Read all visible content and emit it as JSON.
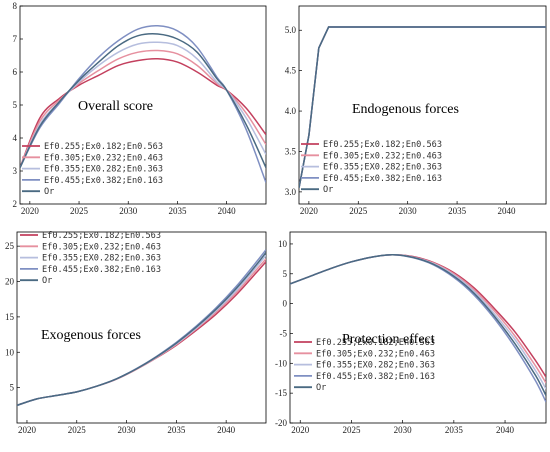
{
  "series_colors": [
    "#c3405e",
    "#e6909f",
    "#b6bede",
    "#7f8fc2",
    "#4a6a82"
  ],
  "chart_data": [
    {
      "type": "line",
      "title": "Overall score",
      "xlim": [
        2019,
        2044
      ],
      "ylim": [
        2,
        8
      ],
      "xticks": [
        "2020",
        "2025",
        "2030",
        "2035",
        "2040"
      ],
      "yticks": [
        "2",
        "3",
        "4",
        "5",
        "6",
        "7",
        "8"
      ],
      "legend": "lower-left",
      "x": [
        2019,
        2021,
        2023,
        2025,
        2027,
        2029,
        2031,
        2033,
        2035,
        2037,
        2039,
        2040,
        2042,
        2044
      ],
      "series": [
        {
          "name": "Ef0.255;Ex0.182;En0.563",
          "values": [
            3.1,
            4.6,
            5.2,
            5.6,
            5.9,
            6.2,
            6.35,
            6.4,
            6.3,
            6.0,
            5.6,
            5.45,
            4.9,
            4.1
          ]
        },
        {
          "name": "Ef0.305;Ex0.232;En0.463",
          "values": [
            3.1,
            4.5,
            5.15,
            5.65,
            6.05,
            6.4,
            6.6,
            6.65,
            6.55,
            6.2,
            5.65,
            5.45,
            4.75,
            3.8
          ]
        },
        {
          "name": "Ef0.355;EX0.282;En0.363",
          "values": [
            3.1,
            4.4,
            5.1,
            5.7,
            6.2,
            6.6,
            6.85,
            6.9,
            6.8,
            6.4,
            5.7,
            5.45,
            4.6,
            3.5
          ]
        },
        {
          "name": "Ef0.455;Ex0.382;En0.163",
          "values": [
            3.1,
            4.3,
            5.05,
            5.8,
            6.45,
            6.95,
            7.3,
            7.4,
            7.25,
            6.75,
            5.85,
            5.45,
            4.25,
            2.65
          ]
        },
        {
          "name": "Or",
          "values": [
            3.1,
            4.35,
            5.1,
            5.75,
            6.3,
            6.8,
            7.1,
            7.15,
            7.0,
            6.6,
            5.8,
            5.45,
            4.4,
            3.1
          ]
        }
      ]
    },
    {
      "type": "line",
      "title": "Endogenous forces",
      "xlim": [
        2019,
        2044
      ],
      "ylim": [
        2.85,
        5.3
      ],
      "xticks": [
        "2020",
        "2025",
        "2030",
        "2035",
        "2040"
      ],
      "yticks": [
        "3.0",
        "3.5",
        "4.0",
        "4.5",
        "5.0"
      ],
      "legend": "lower-left",
      "x": [
        2019,
        2020,
        2021,
        2022,
        2025,
        2030,
        2035,
        2040,
        2044
      ],
      "series": [
        {
          "name": "Ef0.255;Ex0.182;En0.563",
          "values": [
            3.05,
            3.7,
            4.78,
            5.04,
            5.04,
            5.04,
            5.04,
            5.04,
            5.04
          ]
        },
        {
          "name": "Ef0.305;Ex0.232;En0.463",
          "values": [
            3.05,
            3.7,
            4.78,
            5.04,
            5.04,
            5.04,
            5.04,
            5.04,
            5.04
          ]
        },
        {
          "name": "Ef0.355;EX0.282;En0.363",
          "values": [
            3.05,
            3.7,
            4.78,
            5.04,
            5.04,
            5.04,
            5.04,
            5.04,
            5.04
          ]
        },
        {
          "name": "Ef0.455;Ex0.382;En0.163",
          "values": [
            3.05,
            3.7,
            4.78,
            5.04,
            5.04,
            5.04,
            5.04,
            5.04,
            5.04
          ]
        },
        {
          "name": "Or",
          "values": [
            3.05,
            3.7,
            4.78,
            5.04,
            5.04,
            5.04,
            5.04,
            5.04,
            5.04
          ]
        }
      ]
    },
    {
      "type": "line",
      "title": "Exogenous forces",
      "xlim": [
        2019,
        2044
      ],
      "ylim": [
        0,
        27
      ],
      "xticks": [
        "2020",
        "2025",
        "2030",
        "2035",
        "2040"
      ],
      "yticks": [
        "5",
        "10",
        "15",
        "20",
        "25"
      ],
      "legend": "top-left",
      "x": [
        2019,
        2021,
        2023,
        2025,
        2027,
        2029,
        2031,
        2033,
        2035,
        2037,
        2039,
        2041,
        2043,
        2044
      ],
      "series": [
        {
          "name": "Ef0.255;Ex0.182;En0.563",
          "values": [
            2.5,
            3.4,
            3.9,
            4.4,
            5.2,
            6.2,
            7.6,
            9.2,
            11.0,
            13.1,
            15.4,
            18.1,
            21.2,
            22.8
          ]
        },
        {
          "name": "Ef0.305;Ex0.232;En0.463",
          "values": [
            2.5,
            3.4,
            3.9,
            4.4,
            5.2,
            6.2,
            7.6,
            9.25,
            11.1,
            13.3,
            15.7,
            18.4,
            21.6,
            23.2
          ]
        },
        {
          "name": "Ef0.355;EX0.282;En0.363",
          "values": [
            2.5,
            3.4,
            3.9,
            4.4,
            5.2,
            6.25,
            7.65,
            9.3,
            11.2,
            13.4,
            15.9,
            18.7,
            22.0,
            23.7
          ]
        },
        {
          "name": "Ef0.455;Ex0.382;En0.163",
          "values": [
            2.5,
            3.4,
            3.9,
            4.4,
            5.2,
            6.25,
            7.7,
            9.4,
            11.4,
            13.7,
            16.3,
            19.3,
            22.7,
            24.5
          ]
        },
        {
          "name": "Or",
          "values": [
            2.5,
            3.4,
            3.9,
            4.4,
            5.2,
            6.25,
            7.65,
            9.35,
            11.3,
            13.55,
            16.1,
            19.0,
            22.3,
            24.1
          ]
        }
      ]
    },
    {
      "type": "line",
      "title": "Protection effect",
      "xlim": [
        2019,
        2044
      ],
      "ylim": [
        -20,
        12
      ],
      "xticks": [
        "2020",
        "2025",
        "2030",
        "2035",
        "2040"
      ],
      "yticks": [
        "-20",
        "-15",
        "-10",
        "-5",
        "0",
        "5",
        "10"
      ],
      "legend": "lower-left",
      "x": [
        2019,
        2021,
        2023,
        2025,
        2027,
        2029,
        2031,
        2033,
        2035,
        2037,
        2039,
        2041,
        2043,
        2044
      ],
      "series": [
        {
          "name": "Ef0.255;Ex0.182;En0.563",
          "values": [
            3.3,
            4.6,
            5.9,
            7.0,
            7.8,
            8.2,
            7.9,
            6.9,
            5.2,
            2.6,
            -0.9,
            -4.8,
            -9.6,
            -12.3
          ]
        },
        {
          "name": "Ef0.305;Ex0.232;En0.463",
          "values": [
            3.3,
            4.6,
            5.9,
            7.0,
            7.8,
            8.2,
            7.8,
            6.8,
            5.0,
            2.3,
            -1.3,
            -5.5,
            -10.5,
            -13.3
          ]
        },
        {
          "name": "Ef0.355;EX0.282;En0.363",
          "values": [
            3.3,
            4.6,
            5.9,
            7.0,
            7.8,
            8.2,
            7.8,
            6.7,
            4.8,
            2.0,
            -1.8,
            -6.1,
            -11.3,
            -14.3
          ]
        },
        {
          "name": "Ef0.455;Ex0.382;En0.163",
          "values": [
            3.3,
            4.6,
            5.9,
            7.0,
            7.8,
            8.2,
            7.7,
            6.5,
            4.4,
            1.4,
            -2.6,
            -7.4,
            -13.0,
            -16.5
          ]
        },
        {
          "name": "Or",
          "values": [
            3.3,
            4.6,
            5.9,
            7.0,
            7.8,
            8.2,
            7.75,
            6.6,
            4.6,
            1.7,
            -2.2,
            -6.8,
            -12.1,
            -15.4
          ]
        }
      ]
    }
  ]
}
